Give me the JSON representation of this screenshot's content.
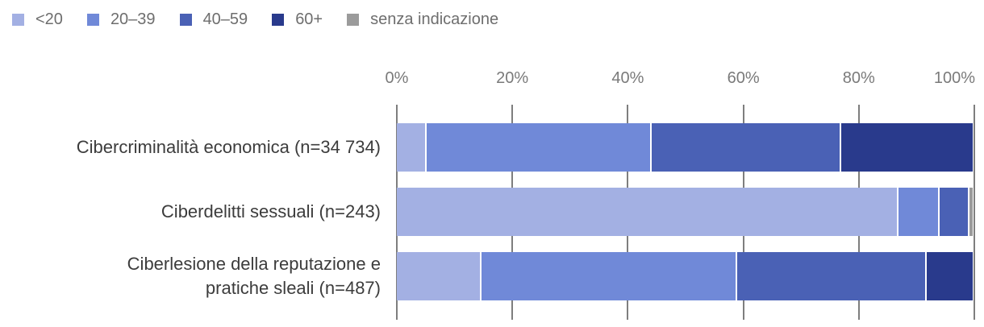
{
  "chart_data": {
    "type": "bar",
    "orientation": "horizontal",
    "stacked": true,
    "unit": "percent",
    "title": "",
    "xlabel": "",
    "ylabel": "",
    "categories": [
      "Cibercriminalità economica (n=34 734)",
      "Ciberdelitti sessuali (n=243)",
      "Ciberlesione della reputazione e pratiche sleali (n=487)"
    ],
    "series": [
      {
        "name": "<20",
        "color": "#a3b0e3",
        "values": [
          5,
          87.5,
          14.5
        ]
      },
      {
        "name": "20–39",
        "color": "#7089d8",
        "values": [
          39,
          7,
          44.5
        ]
      },
      {
        "name": "40–59",
        "color": "#4a61b5",
        "values": [
          33,
          5,
          33
        ]
      },
      {
        "name": "60+",
        "color": "#293a8c",
        "values": [
          23,
          0,
          8
        ]
      },
      {
        "name": "senza indicazione",
        "color": "#9b9b9b",
        "values": [
          0,
          0.5,
          0
        ]
      }
    ],
    "x_ticks": [
      "0%",
      "20%",
      "40%",
      "60%",
      "80%",
      "100%"
    ],
    "xlim": [
      0,
      100
    ],
    "grid": "vertical",
    "legend_position": "top-left"
  },
  "rows": [
    {
      "label": "Cibercriminalità economica (n=34 734)"
    },
    {
      "label": "Ciberdelitti sessuali (n=243)"
    },
    {
      "label": "Ciberlesione della reputazione e\npratiche sleali (n=487)"
    }
  ],
  "colors": {
    "gridline": "#7e7e7e",
    "axis_text": "#7a7a7a",
    "label_text": "#3c3c3c",
    "legend_text": "#6e6e6e",
    "background": "#ffffff"
  }
}
